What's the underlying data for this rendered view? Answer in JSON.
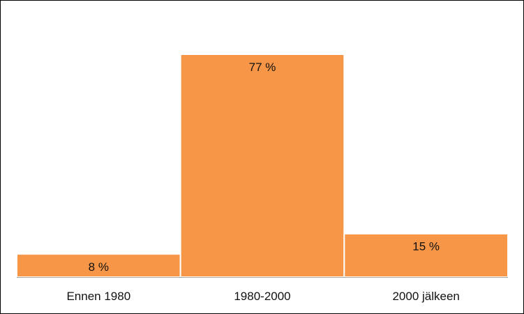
{
  "chart_data": {
    "type": "bar",
    "categories": [
      "Ennen 1980",
      "1980-2000",
      "2000 jälkeen"
    ],
    "values": [
      8,
      77,
      15
    ],
    "data_labels": [
      "8 %",
      "77 %",
      "15 %"
    ],
    "title": "",
    "xlabel": "",
    "ylabel": "",
    "ylim": [
      0,
      77
    ],
    "grid": false,
    "legend": "none",
    "bar_color": "#F79646",
    "bar_edge_color": "#ffffff",
    "axis_color": "#a6a6a6",
    "label_color": "#111111"
  }
}
